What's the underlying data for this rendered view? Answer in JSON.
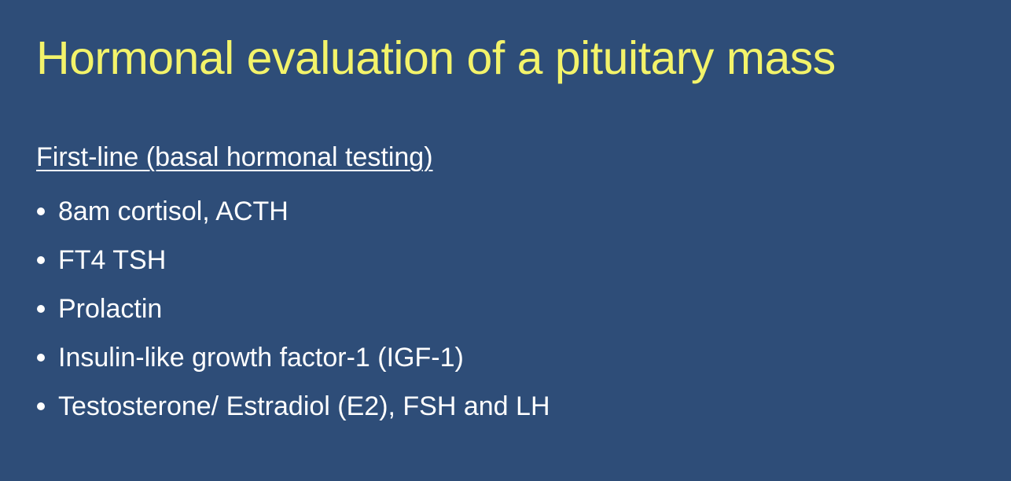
{
  "slide": {
    "title": "Hormonal evaluation of a pituitary mass",
    "subheading": "First-line (basal hormonal testing)",
    "bullets": [
      "8am cortisol, ACTH",
      "FT4 TSH",
      "Prolactin",
      "Insulin-like growth factor-1 (IGF-1)",
      "Testosterone/ Estradiol (E2), FSH and LH"
    ]
  },
  "colors": {
    "background": "#2e4d78",
    "title": "#f3f36a",
    "body_text": "#ffffff"
  }
}
